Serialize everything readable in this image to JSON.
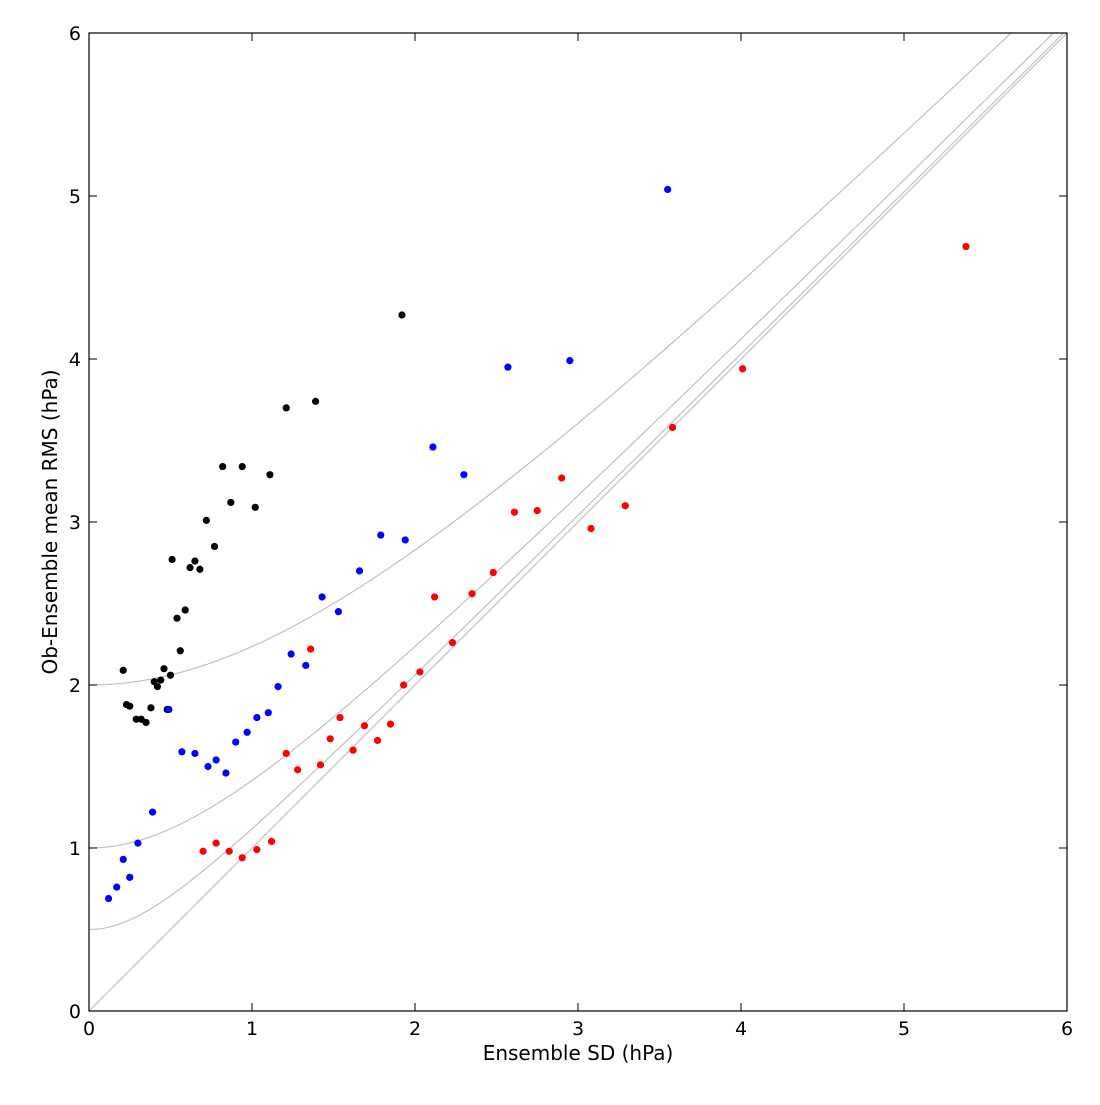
{
  "chart_data": {
    "type": "scatter",
    "title": "",
    "xlabel": "Ensemble SD (hPa)",
    "ylabel": "Ob-Ensemble mean RMS (hPa)",
    "xlim": [
      0,
      6
    ],
    "ylim": [
      0,
      6
    ],
    "xticks": [
      "0",
      "1",
      "2",
      "3",
      "4",
      "5",
      "6"
    ],
    "yticks": [
      "0",
      "1",
      "2",
      "3",
      "4",
      "5",
      "6"
    ],
    "grid": false,
    "legend": "none",
    "reference_curves": [
      {
        "formula": "y = sqrt(x^2 + 0^2)",
        "offset": 0,
        "color": "#c0c0c0"
      },
      {
        "formula": "y = sqrt(x^2 + 0.5^2)",
        "offset": 0.5,
        "color": "#c0c0c0"
      },
      {
        "formula": "y = sqrt(x^2 + 1^2)",
        "offset": 1,
        "color": "#c0c0c0"
      },
      {
        "formula": "y = sqrt(x^2 + 2^2)",
        "offset": 2,
        "color": "#c0c0c0"
      }
    ],
    "series": [
      {
        "color": "#000000",
        "points": [
          [
            0.21,
            2.09
          ],
          [
            0.23,
            1.88
          ],
          [
            0.25,
            1.87
          ],
          [
            0.29,
            1.79
          ],
          [
            0.32,
            1.79
          ],
          [
            0.35,
            1.77
          ],
          [
            0.38,
            1.86
          ],
          [
            0.4,
            2.02
          ],
          [
            0.42,
            1.99
          ],
          [
            0.44,
            2.03
          ],
          [
            0.46,
            2.1
          ],
          [
            0.48,
            1.85
          ],
          [
            0.5,
            2.06
          ],
          [
            0.51,
            2.77
          ],
          [
            0.54,
            2.41
          ],
          [
            0.56,
            2.21
          ],
          [
            0.59,
            2.46
          ],
          [
            0.62,
            2.72
          ],
          [
            0.65,
            2.76
          ],
          [
            0.68,
            2.71
          ],
          [
            0.72,
            3.01
          ],
          [
            0.77,
            2.85
          ],
          [
            0.82,
            3.34
          ],
          [
            0.87,
            3.12
          ],
          [
            0.94,
            3.34
          ],
          [
            1.02,
            3.09
          ],
          [
            1.11,
            3.29
          ],
          [
            1.21,
            3.7
          ],
          [
            1.39,
            3.74
          ],
          [
            1.92,
            4.27
          ]
        ]
      },
      {
        "color": "#0000ff",
        "points": [
          [
            0.12,
            0.69
          ],
          [
            0.17,
            0.76
          ],
          [
            0.21,
            0.93
          ],
          [
            0.25,
            0.82
          ],
          [
            0.3,
            1.03
          ],
          [
            0.39,
            1.22
          ],
          [
            0.49,
            1.85
          ],
          [
            0.57,
            1.59
          ],
          [
            0.65,
            1.58
          ],
          [
            0.73,
            1.5
          ],
          [
            0.78,
            1.54
          ],
          [
            0.84,
            1.46
          ],
          [
            0.9,
            1.65
          ],
          [
            0.97,
            1.71
          ],
          [
            1.03,
            1.8
          ],
          [
            1.1,
            1.83
          ],
          [
            1.16,
            1.99
          ],
          [
            1.24,
            2.19
          ],
          [
            1.33,
            2.12
          ],
          [
            1.43,
            2.54
          ],
          [
            1.53,
            2.45
          ],
          [
            1.66,
            2.7
          ],
          [
            1.79,
            2.92
          ],
          [
            1.94,
            2.89
          ],
          [
            2.11,
            3.46
          ],
          [
            2.3,
            3.29
          ],
          [
            2.57,
            3.95
          ],
          [
            2.95,
            3.99
          ],
          [
            3.55,
            5.04
          ]
        ]
      },
      {
        "color": "#ff0000",
        "points": [
          [
            0.7,
            0.98
          ],
          [
            0.78,
            1.03
          ],
          [
            0.86,
            0.98
          ],
          [
            0.94,
            0.94
          ],
          [
            1.03,
            0.99
          ],
          [
            1.12,
            1.04
          ],
          [
            1.21,
            1.58
          ],
          [
            1.28,
            1.48
          ],
          [
            1.36,
            2.22
          ],
          [
            1.42,
            1.51
          ],
          [
            1.48,
            1.67
          ],
          [
            1.54,
            1.8
          ],
          [
            1.62,
            1.6
          ],
          [
            1.69,
            1.75
          ],
          [
            1.77,
            1.66
          ],
          [
            1.85,
            1.76
          ],
          [
            1.93,
            2.0
          ],
          [
            2.03,
            2.08
          ],
          [
            2.12,
            2.54
          ],
          [
            2.23,
            2.26
          ],
          [
            2.35,
            2.56
          ],
          [
            2.48,
            2.69
          ],
          [
            2.61,
            3.06
          ],
          [
            2.75,
            3.07
          ],
          [
            2.9,
            3.27
          ],
          [
            3.08,
            2.96
          ],
          [
            3.29,
            3.1
          ],
          [
            3.58,
            3.58
          ],
          [
            4.01,
            3.94
          ],
          [
            5.38,
            4.69
          ]
        ]
      }
    ]
  }
}
